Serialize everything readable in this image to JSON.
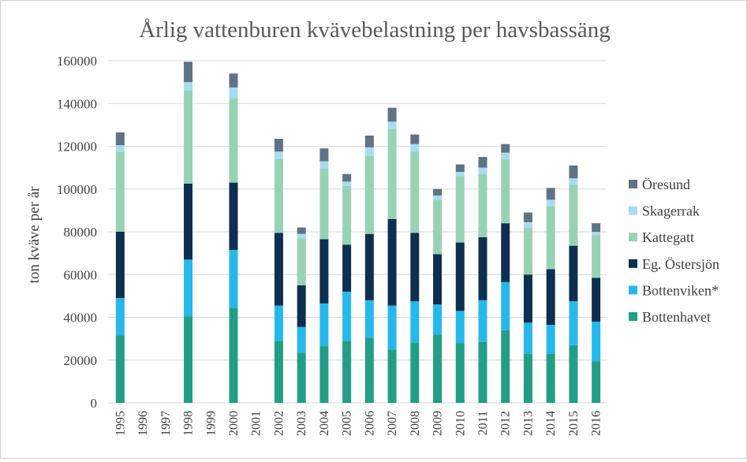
{
  "chart_data": {
    "type": "bar",
    "stacked": true,
    "title": "Årlig vattenburen kvävebelastning per havsbassäng",
    "ylabel": "ton kväve per år",
    "xlabel": "",
    "ylim": [
      0,
      160000
    ],
    "yticks": [
      0,
      20000,
      40000,
      60000,
      80000,
      100000,
      120000,
      140000,
      160000
    ],
    "grid": true,
    "legend_position": "right",
    "categories": [
      "1995",
      "1996",
      "1997",
      "1998",
      "1999",
      "2000",
      "2001",
      "2002",
      "2003",
      "2004",
      "2005",
      "2006",
      "2007",
      "2008",
      "2009",
      "2010",
      "2011",
      "2012",
      "2013",
      "2014",
      "2015",
      "2016"
    ],
    "series": [
      {
        "name": "Bottenhavet",
        "color": "#229e86",
        "values": [
          31500,
          null,
          null,
          40500,
          null,
          44500,
          null,
          29000,
          23500,
          26500,
          29000,
          30500,
          25000,
          28000,
          32000,
          28000,
          28500,
          34000,
          23000,
          23000,
          27000,
          19500
        ]
      },
      {
        "name": "Bottenviken*",
        "color": "#26b8ea",
        "values": [
          17500,
          null,
          null,
          26500,
          null,
          27000,
          null,
          16500,
          12000,
          20000,
          23000,
          17500,
          20500,
          19500,
          14000,
          15000,
          19500,
          22500,
          14500,
          13500,
          20500,
          18500
        ]
      },
      {
        "name": "Eg. Östersjön",
        "color": "#0d2f50",
        "values": [
          31000,
          null,
          null,
          35500,
          null,
          31500,
          null,
          34000,
          19500,
          30000,
          22000,
          31000,
          40500,
          32000,
          23500,
          32000,
          29500,
          27500,
          22500,
          26000,
          26000,
          20500
        ]
      },
      {
        "name": "Kattegatt",
        "color": "#98d2b5",
        "values": [
          37500,
          null,
          null,
          43500,
          null,
          39500,
          null,
          34500,
          22000,
          33000,
          27500,
          36500,
          42000,
          38000,
          25500,
          31000,
          29500,
          30000,
          22000,
          29500,
          28500,
          20000
        ]
      },
      {
        "name": "Skagerrak",
        "color": "#a7ddf1",
        "values": [
          3000,
          null,
          null,
          4000,
          null,
          5000,
          null,
          3500,
          2000,
          3500,
          2000,
          4000,
          3500,
          3500,
          2000,
          2000,
          3000,
          3000,
          2500,
          3000,
          3000,
          1500
        ]
      },
      {
        "name": "Öresund",
        "color": "#5e7385",
        "values": [
          6000,
          null,
          null,
          9500,
          null,
          6500,
          null,
          6000,
          3000,
          6000,
          3500,
          5500,
          6500,
          4500,
          3000,
          3500,
          5000,
          4000,
          4500,
          5500,
          6000,
          4000
        ]
      }
    ]
  }
}
